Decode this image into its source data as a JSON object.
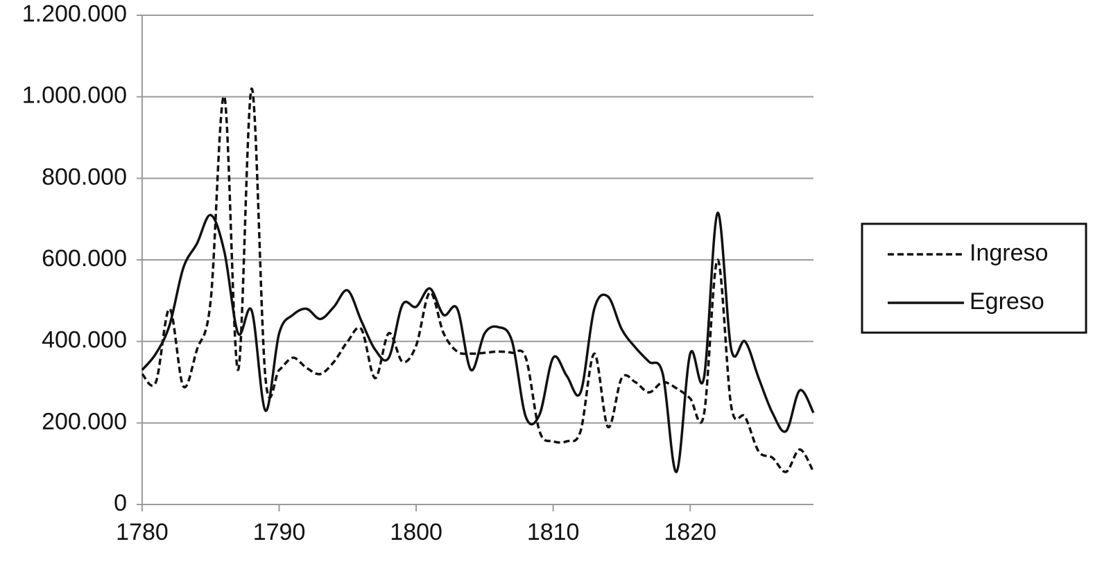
{
  "chart_data": {
    "type": "line",
    "x": [
      1780,
      1781,
      1782,
      1783,
      1784,
      1785,
      1786,
      1787,
      1788,
      1789,
      1790,
      1791,
      1792,
      1793,
      1794,
      1795,
      1796,
      1797,
      1798,
      1799,
      1800,
      1801,
      1802,
      1803,
      1804,
      1805,
      1806,
      1807,
      1808,
      1809,
      1810,
      1811,
      1812,
      1813,
      1814,
      1815,
      1816,
      1817,
      1818,
      1819,
      1820,
      1821,
      1822,
      1823,
      1824,
      1825,
      1826,
      1827,
      1828,
      1829
    ],
    "series": [
      {
        "name": "Ingreso",
        "color": "#111111",
        "dash": true,
        "values": [
          320000,
          300000,
          480000,
          290000,
          380000,
          500000,
          1000000,
          330000,
          1020000,
          310000,
          330000,
          360000,
          335000,
          320000,
          350000,
          400000,
          430000,
          310000,
          420000,
          350000,
          390000,
          520000,
          420000,
          375000,
          370000,
          372000,
          375000,
          372000,
          360000,
          180000,
          155000,
          155000,
          180000,
          370000,
          190000,
          310000,
          300000,
          275000,
          300000,
          285000,
          260000,
          220000,
          600000,
          240000,
          215000,
          130000,
          115000,
          80000,
          135000,
          80000
        ]
      },
      {
        "name": "Egreso",
        "color": "#111111",
        "dash": false,
        "values": [
          330000,
          370000,
          440000,
          580000,
          640000,
          710000,
          620000,
          420000,
          475000,
          230000,
          420000,
          465000,
          480000,
          455000,
          485000,
          525000,
          450000,
          380000,
          360000,
          490000,
          485000,
          530000,
          465000,
          480000,
          330000,
          420000,
          435000,
          400000,
          215000,
          220000,
          360000,
          315000,
          275000,
          480000,
          510000,
          430000,
          385000,
          350000,
          320000,
          80000,
          370000,
          310000,
          715000,
          380000,
          400000,
          310000,
          225000,
          180000,
          280000,
          225000
        ]
      }
    ],
    "xlim": [
      1780,
      1829
    ],
    "xticks": [
      1780,
      1790,
      1800,
      1810,
      1820
    ],
    "ylim": [
      0,
      1200000
    ],
    "yticks": [
      0,
      {
        "value": 200000,
        "label": "200.000"
      },
      {
        "value": 400000,
        "label": "400.000"
      },
      {
        "value": 600000,
        "label": "600.000"
      },
      {
        "value": 800000,
        "label": "800.000"
      },
      {
        "value": 1000000,
        "label": "1.000.000"
      },
      {
        "value": 1200000,
        "label": "1.200.000"
      }
    ],
    "grid": true,
    "legend": "right"
  }
}
